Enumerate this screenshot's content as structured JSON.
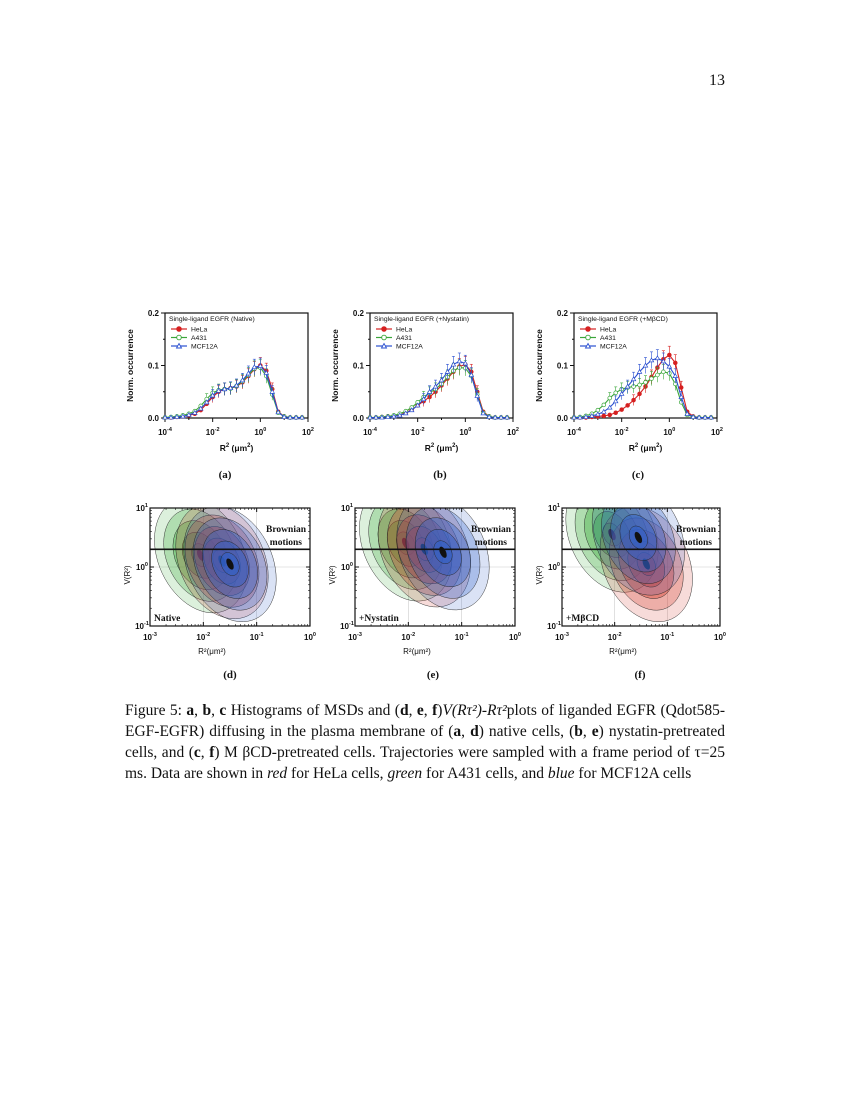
{
  "page_number": "13",
  "colors": {
    "hela": "#d62020",
    "a431": "#3aa63a",
    "mcf12a": "#2a4fd0"
  },
  "histograms": [
    {
      "panel": "(a)",
      "title": "Single-ligand EGFR (Native)"
    },
    {
      "panel": "(b)",
      "title": "Single-ligand EGFR (+Nystatin)"
    },
    {
      "panel": "(c)",
      "title": "Single-ligand EGFR (+MβCD)"
    }
  ],
  "hist_axes": {
    "ylabel": "Norm. occurrence",
    "xlabel_main": "R",
    "xlabel_sup": "2",
    "xlabel_unit": " (μm",
    "xlabel_unit_sup": "2",
    "xlabel_close": ")",
    "yticks": [
      "0.0",
      "0.1",
      "0.2"
    ],
    "xticks": [
      {
        "base": "10",
        "exp": "-4"
      },
      {
        "base": "10",
        "exp": "-2"
      },
      {
        "base": "10",
        "exp": "0"
      },
      {
        "base": "10",
        "exp": "2"
      }
    ]
  },
  "legend": [
    "HeLa",
    "A431",
    "MCF12A"
  ],
  "contours": [
    {
      "panel": "(d)",
      "condition": "Native"
    },
    {
      "panel": "(e)",
      "condition": "+Nystatin"
    },
    {
      "panel": "(f)",
      "condition": "+MβCD"
    }
  ],
  "contour_axes": {
    "brownian_line1": "Brownian",
    "brownian_line2": "motions",
    "ylabel": "V(R²)",
    "xlabel": "R²(μm²)",
    "yticks": [
      {
        "base": "10",
        "exp": "1"
      },
      {
        "base": "10",
        "exp": "0"
      },
      {
        "base": "10",
        "exp": "-1"
      }
    ],
    "xticks": [
      {
        "base": "10",
        "exp": "-3"
      },
      {
        "base": "10",
        "exp": "-2"
      },
      {
        "base": "10",
        "exp": "-1"
      },
      {
        "base": "10",
        "exp": "0"
      }
    ]
  },
  "chart_data": [
    {
      "type": "line",
      "title": "Single-ligand EGFR (Native)",
      "xlabel": "R2 (um2)",
      "ylabel": "Norm. occurrence",
      "x_scale": "log",
      "xlim": [
        0.0001,
        100
      ],
      "ylim": [
        0,
        0.2
      ],
      "x": [
        0.0001,
        0.000178,
        0.000316,
        0.000562,
        0.001,
        0.00178,
        0.00316,
        0.00562,
        0.01,
        0.0178,
        0.0316,
        0.0562,
        0.1,
        0.178,
        0.316,
        0.562,
        1,
        1.78,
        3.16,
        5.62,
        10,
        17.8,
        31.6,
        56.2
      ],
      "series": [
        {
          "name": "HeLa",
          "values": [
            0.001,
            0.001,
            0.002,
            0.003,
            0.005,
            0.008,
            0.015,
            0.027,
            0.04,
            0.05,
            0.055,
            0.057,
            0.06,
            0.068,
            0.08,
            0.093,
            0.1,
            0.09,
            0.055,
            0.012,
            0.003,
            0.001,
            0.001,
            0.001
          ]
        },
        {
          "name": "A431",
          "values": [
            0.001,
            0.002,
            0.003,
            0.005,
            0.008,
            0.013,
            0.023,
            0.036,
            0.048,
            0.053,
            0.055,
            0.056,
            0.061,
            0.07,
            0.082,
            0.094,
            0.096,
            0.08,
            0.045,
            0.01,
            0.003,
            0.001,
            0.001,
            0.001
          ]
        },
        {
          "name": "MCF12A",
          "values": [
            0.001,
            0.001,
            0.002,
            0.003,
            0.006,
            0.01,
            0.018,
            0.03,
            0.043,
            0.052,
            0.055,
            0.057,
            0.062,
            0.072,
            0.085,
            0.097,
            0.099,
            0.086,
            0.05,
            0.011,
            0.002,
            0.001,
            0.001,
            0.001
          ]
        }
      ]
    },
    {
      "type": "line",
      "title": "Single-ligand EGFR (+Nystatin)",
      "xlabel": "R2 (um2)",
      "ylabel": "Norm. occurrence",
      "x_scale": "log",
      "xlim": [
        0.0001,
        100
      ],
      "ylim": [
        0,
        0.2
      ],
      "x": [
        0.0001,
        0.000178,
        0.000316,
        0.000562,
        0.001,
        0.00178,
        0.00316,
        0.00562,
        0.01,
        0.0178,
        0.0316,
        0.0562,
        0.1,
        0.178,
        0.316,
        0.562,
        1,
        1.78,
        3.16,
        5.62,
        10,
        17.8,
        31.6,
        56.2
      ],
      "series": [
        {
          "name": "HeLa",
          "values": [
            0.001,
            0.001,
            0.002,
            0.003,
            0.004,
            0.006,
            0.01,
            0.016,
            0.024,
            0.032,
            0.04,
            0.05,
            0.062,
            0.075,
            0.088,
            0.098,
            0.102,
            0.088,
            0.05,
            0.012,
            0.003,
            0.001,
            0.001,
            0.001
          ]
        },
        {
          "name": "A431",
          "values": [
            0.001,
            0.001,
            0.002,
            0.003,
            0.005,
            0.008,
            0.013,
            0.02,
            0.03,
            0.04,
            0.048,
            0.055,
            0.065,
            0.078,
            0.09,
            0.096,
            0.095,
            0.08,
            0.045,
            0.01,
            0.003,
            0.001,
            0.001,
            0.001
          ]
        },
        {
          "name": "MCF12A",
          "values": [
            0.001,
            0.001,
            0.001,
            0.002,
            0.003,
            0.005,
            0.009,
            0.015,
            0.024,
            0.036,
            0.05,
            0.06,
            0.072,
            0.088,
            0.102,
            0.108,
            0.104,
            0.082,
            0.042,
            0.009,
            0.002,
            0.001,
            0.001,
            0.001
          ]
        }
      ]
    },
    {
      "type": "line",
      "title": "Single-ligand EGFR (+MβCD)",
      "xlabel": "R2 (um2)",
      "ylabel": "Norm. occurrence",
      "x_scale": "log",
      "xlim": [
        0.0001,
        100
      ],
      "ylim": [
        0,
        0.2
      ],
      "x": [
        0.0001,
        0.000178,
        0.000316,
        0.000562,
        0.001,
        0.00178,
        0.00316,
        0.00562,
        0.01,
        0.0178,
        0.0316,
        0.0562,
        0.1,
        0.178,
        0.316,
        0.562,
        1,
        1.78,
        3.16,
        5.62,
        10,
        17.8,
        31.6,
        56.2
      ],
      "series": [
        {
          "name": "HeLa",
          "values": [
            0.001,
            0.001,
            0.001,
            0.002,
            0.003,
            0.004,
            0.006,
            0.01,
            0.016,
            0.024,
            0.034,
            0.046,
            0.06,
            0.078,
            0.096,
            0.112,
            0.12,
            0.105,
            0.058,
            0.012,
            0.003,
            0.001,
            0.001,
            0.001
          ]
        },
        {
          "name": "A431",
          "values": [
            0.001,
            0.002,
            0.004,
            0.008,
            0.015,
            0.025,
            0.038,
            0.048,
            0.055,
            0.058,
            0.06,
            0.063,
            0.068,
            0.075,
            0.082,
            0.088,
            0.085,
            0.065,
            0.03,
            0.006,
            0.002,
            0.001,
            0.001,
            0.001
          ]
        },
        {
          "name": "MCF12A",
          "values": [
            0.001,
            0.001,
            0.002,
            0.004,
            0.007,
            0.012,
            0.02,
            0.032,
            0.046,
            0.06,
            0.074,
            0.088,
            0.1,
            0.11,
            0.114,
            0.108,
            0.098,
            0.08,
            0.04,
            0.008,
            0.002,
            0.001,
            0.001,
            0.001
          ]
        }
      ]
    }
  ],
  "caption": {
    "p1": "Figure 5: ",
    "a": "a",
    "c1": ", ",
    "b": "b",
    "c2": ", ",
    "c": "c",
    "p2": " Histograms of MSDs and (",
    "d": "d",
    "c3": ", ",
    "e": "e",
    "c4": ", ",
    "f": "f",
    "p3": ")",
    "math": "V(Rτ²)-Rτ²",
    "p4": "plots of liganded EGFR (Qdot585-EGF-EGFR) diffusing in the plasma membrane of (",
    "a2": "a",
    "c5": ", ",
    "d2": "d",
    "p5": ") native cells, (",
    "b2": "b",
    "c6": ", ",
    "e2": "e",
    "p6": ") nystatin-pretreated cells, and (",
    "c3b": "c",
    "c7": ", ",
    "f2": "f",
    "p7": ") M βCD-pretreated cells.  Trajectories were sampled with a frame period of τ=25 ms.  Data are shown in ",
    "red": "red",
    "p8": " for HeLa cells, ",
    "green": "green",
    "p9": " for A431 cells, and ",
    "blue": "blue",
    "p10": " for MCF12A cells"
  }
}
